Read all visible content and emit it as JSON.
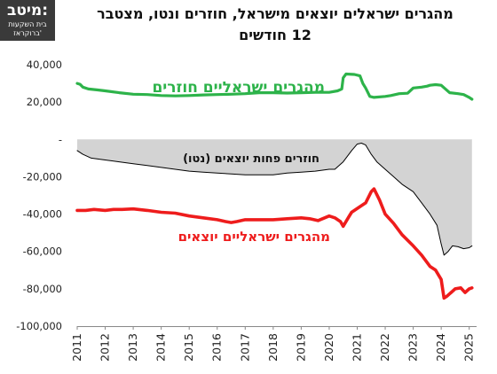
{
  "logo": {
    "main": "מיטב:",
    "line1": "בית השקעות",
    "line2": "ברוקראז'"
  },
  "title": {
    "line1": "מהגרים ישראלים יוצאים מישראל, חוזרים ונטו, מצטבר",
    "line2": "12 חודשים"
  },
  "colors": {
    "returning": "#2db34a",
    "leaving": "#ee1c1c",
    "net_fill": "#d3d3d3",
    "net_line": "#000000"
  },
  "chart_data": {
    "type": "line",
    "ylim": [
      -100000,
      40000
    ],
    "xlim": [
      2011,
      2025.2
    ],
    "yticks": [
      40000,
      20000,
      0,
      -20000,
      -40000,
      -60000,
      -80000,
      -100000
    ],
    "ytick_labels": [
      "40,000",
      "20,000",
      "-",
      "-20,000",
      "-40,000",
      "-60,000",
      "-80,000",
      "-100,000"
    ],
    "xticks": [
      2011,
      2012,
      2013,
      2014,
      2015,
      2016,
      2017,
      2018,
      2019,
      2020,
      2021,
      2022,
      2023,
      2024,
      2025
    ],
    "xtick_labels": [
      "2011",
      "2012",
      "2013",
      "2014",
      "2015",
      "2016",
      "2017",
      "2018",
      "2019",
      "2020",
      "2021",
      "2022",
      "2023",
      "2024",
      "2025"
    ],
    "grid": false,
    "series": [
      {
        "name": "מהגרים ישראליים חוזרים",
        "key": "returning",
        "x": [
          2011.0,
          2011.1,
          2011.2,
          2011.4,
          2011.7,
          2012.0,
          2012.5,
          2013.0,
          2013.5,
          2014.0,
          2014.5,
          2015.0,
          2015.5,
          2016.0,
          2016.5,
          2017.0,
          2017.5,
          2018.0,
          2018.5,
          2019.0,
          2019.5,
          2020.0,
          2020.3,
          2020.45,
          2020.5,
          2020.6,
          2020.9,
          2021.1,
          2021.2,
          2021.3,
          2021.45,
          2021.6,
          2022.0,
          2022.2,
          2022.5,
          2022.8,
          2023.0,
          2023.3,
          2023.5,
          2023.6,
          2023.8,
          2024.0,
          2024.3,
          2024.6,
          2024.8,
          2025.0,
          2025.1
        ],
        "y": [
          30000,
          29500,
          28000,
          27000,
          26500,
          26000,
          25000,
          24200,
          24000,
          23500,
          23300,
          23500,
          23800,
          24000,
          24200,
          24500,
          25000,
          25000,
          24800,
          25000,
          25200,
          25200,
          26000,
          27000,
          33000,
          35000,
          34800,
          34000,
          30000,
          27500,
          23000,
          22500,
          23000,
          23500,
          24500,
          24700,
          27500,
          28000,
          28500,
          29000,
          29300,
          29000,
          25000,
          24500,
          24000,
          22500,
          21500
        ]
      },
      {
        "name": "מהגרים ישראליים יוצאים",
        "key": "leaving",
        "x": [
          2011.0,
          2011.3,
          2011.6,
          2012.0,
          2012.3,
          2012.6,
          2013.0,
          2013.5,
          2014.0,
          2014.5,
          2015.0,
          2015.5,
          2016.0,
          2016.3,
          2016.5,
          2016.7,
          2017.0,
          2017.5,
          2018.0,
          2018.5,
          2019.0,
          2019.3,
          2019.6,
          2020.0,
          2020.2,
          2020.4,
          2020.5,
          2020.7,
          2020.8,
          2021.0,
          2021.3,
          2021.5,
          2021.6,
          2021.8,
          2022.0,
          2022.3,
          2022.6,
          2023.0,
          2023.3,
          2023.6,
          2023.8,
          2024.0,
          2024.1,
          2024.2,
          2024.35,
          2024.5,
          2024.7,
          2024.85,
          2025.0,
          2025.1
        ],
        "y": [
          -38000,
          -38000,
          -37500,
          -38000,
          -37500,
          -37500,
          -37200,
          -38000,
          -39000,
          -39500,
          -41000,
          -42000,
          -43000,
          -44000,
          -44500,
          -44000,
          -43000,
          -43000,
          -43000,
          -42500,
          -42000,
          -42500,
          -43500,
          -41000,
          -42000,
          -44000,
          -46500,
          -41500,
          -39000,
          -37000,
          -34000,
          -28000,
          -26500,
          -32500,
          -40000,
          -45000,
          -51000,
          -57000,
          -62000,
          -68000,
          -70000,
          -75000,
          -85000,
          -84000,
          -82000,
          -80000,
          -79500,
          -82000,
          -80000,
          -79500
        ]
      },
      {
        "name": "חוזרים פחות יוצאים (נטו)",
        "key": "net",
        "x": [
          2011.0,
          2011.2,
          2011.5,
          2012.0,
          2012.5,
          2013.0,
          2013.5,
          2014.0,
          2014.5,
          2015.0,
          2015.5,
          2016.0,
          2016.5,
          2017.0,
          2017.5,
          2018.0,
          2018.5,
          2019.0,
          2019.5,
          2020.0,
          2020.2,
          2020.5,
          2020.8,
          2021.0,
          2021.15,
          2021.3,
          2021.5,
          2021.7,
          2022.0,
          2022.3,
          2022.6,
          2023.0,
          2023.3,
          2023.6,
          2023.85,
          2024.0,
          2024.1,
          2024.25,
          2024.4,
          2024.6,
          2024.8,
          2025.0,
          2025.1
        ],
        "y": [
          -6000,
          -8000,
          -10000,
          -11000,
          -12000,
          -13000,
          -14000,
          -15000,
          -16000,
          -17000,
          -17500,
          -18000,
          -18500,
          -19000,
          -19000,
          -19000,
          -18000,
          -17500,
          -17000,
          -16000,
          -16000,
          -12000,
          -6000,
          -2500,
          -2000,
          -3000,
          -8000,
          -12000,
          -16000,
          -20000,
          -24000,
          -28000,
          -34000,
          -40000,
          -46000,
          -56000,
          -62000,
          -60000,
          -57000,
          -57500,
          -58500,
          -58000,
          -57000
        ]
      }
    ],
    "annotations": [
      {
        "key": "returning",
        "text": "מהגרים ישראליים חוזרים"
      },
      {
        "key": "net",
        "text": "חוזרים פחות יוצאים (נטו)"
      },
      {
        "key": "leaving",
        "text": "מהגרים ישראליים יוצאים"
      }
    ]
  }
}
